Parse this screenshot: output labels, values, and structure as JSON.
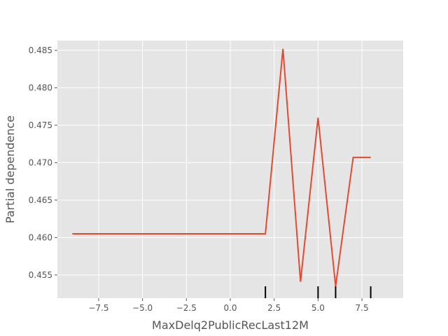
{
  "chart_data": {
    "type": "line",
    "title": "",
    "xlabel": "MaxDelq2PublicRecLast12M",
    "ylabel": "Partial dependence",
    "xlim": [
      -9.85,
      9.85
    ],
    "ylim": [
      0.4519,
      0.4863
    ],
    "grid": true,
    "background": "#e5e5e5",
    "grid_color": "#ffffff",
    "x_ticks": [
      -7.5,
      -5.0,
      -2.5,
      0.0,
      2.5,
      5.0,
      7.5
    ],
    "x_tick_labels": [
      "−7.5",
      "−5.0",
      "−2.5",
      "0.0",
      "2.5",
      "5.0",
      "7.5"
    ],
    "y_ticks": [
      0.455,
      0.46,
      0.465,
      0.47,
      0.475,
      0.48,
      0.485
    ],
    "y_tick_labels": [
      "0.455",
      "0.460",
      "0.465",
      "0.470",
      "0.475",
      "0.480",
      "0.485"
    ],
    "series": [
      {
        "color": "#e24a33",
        "x": [
          -9,
          -8,
          -7,
          -6,
          -5,
          -4,
          -3,
          -2,
          -1,
          0,
          1,
          2,
          3,
          4,
          5,
          6,
          7,
          8
        ],
        "y": [
          0.4605,
          0.4605,
          0.4605,
          0.4605,
          0.4605,
          0.4605,
          0.4605,
          0.4605,
          0.4605,
          0.4605,
          0.4605,
          0.4605,
          0.4852,
          0.4541,
          0.476,
          0.4535,
          0.4707,
          0.4707
        ]
      }
    ],
    "deciles": [
      2,
      5,
      6,
      8
    ],
    "decile_color": "#000000"
  }
}
